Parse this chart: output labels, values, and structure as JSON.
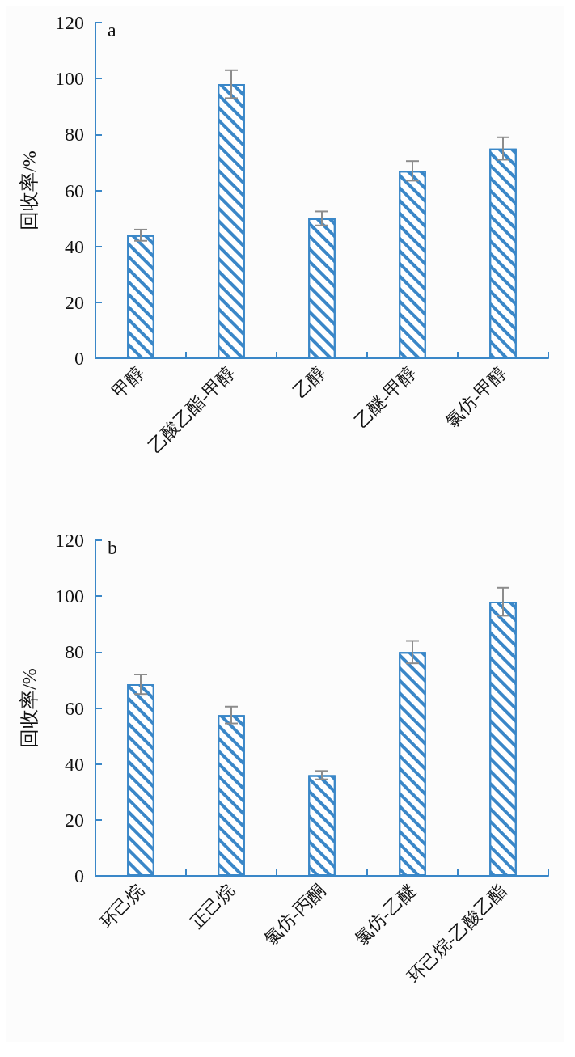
{
  "chart_data": [
    {
      "type": "bar",
      "title": "a",
      "ylabel": "回收率/%",
      "categories": [
        "甲醇",
        "乙酸乙酯-甲醇",
        "乙醇",
        "乙醚-甲醇",
        "氯仿-甲醇"
      ],
      "values": [
        44,
        98,
        50,
        67,
        75
      ],
      "errors": [
        2,
        5,
        2.5,
        3.5,
        4
      ],
      "color": "#3a87c8",
      "ylim": [
        0,
        120
      ],
      "yticks": [
        0,
        20,
        40,
        60,
        80,
        100,
        120
      ],
      "grid": false
    },
    {
      "type": "bar",
      "title": "b",
      "ylabel": "回收率/%",
      "categories": [
        "环己烷",
        "正己烷",
        "氯仿-丙酮",
        "氯仿-乙醚",
        "环己烷-乙酸乙酯"
      ],
      "values": [
        68.5,
        57.5,
        36,
        80,
        98
      ],
      "errors": [
        3.5,
        3,
        1.5,
        4,
        5
      ],
      "color": "#3a87c8",
      "ylim": [
        0,
        120
      ],
      "yticks": [
        0,
        20,
        40,
        60,
        80,
        100,
        120
      ],
      "grid": false
    }
  ]
}
